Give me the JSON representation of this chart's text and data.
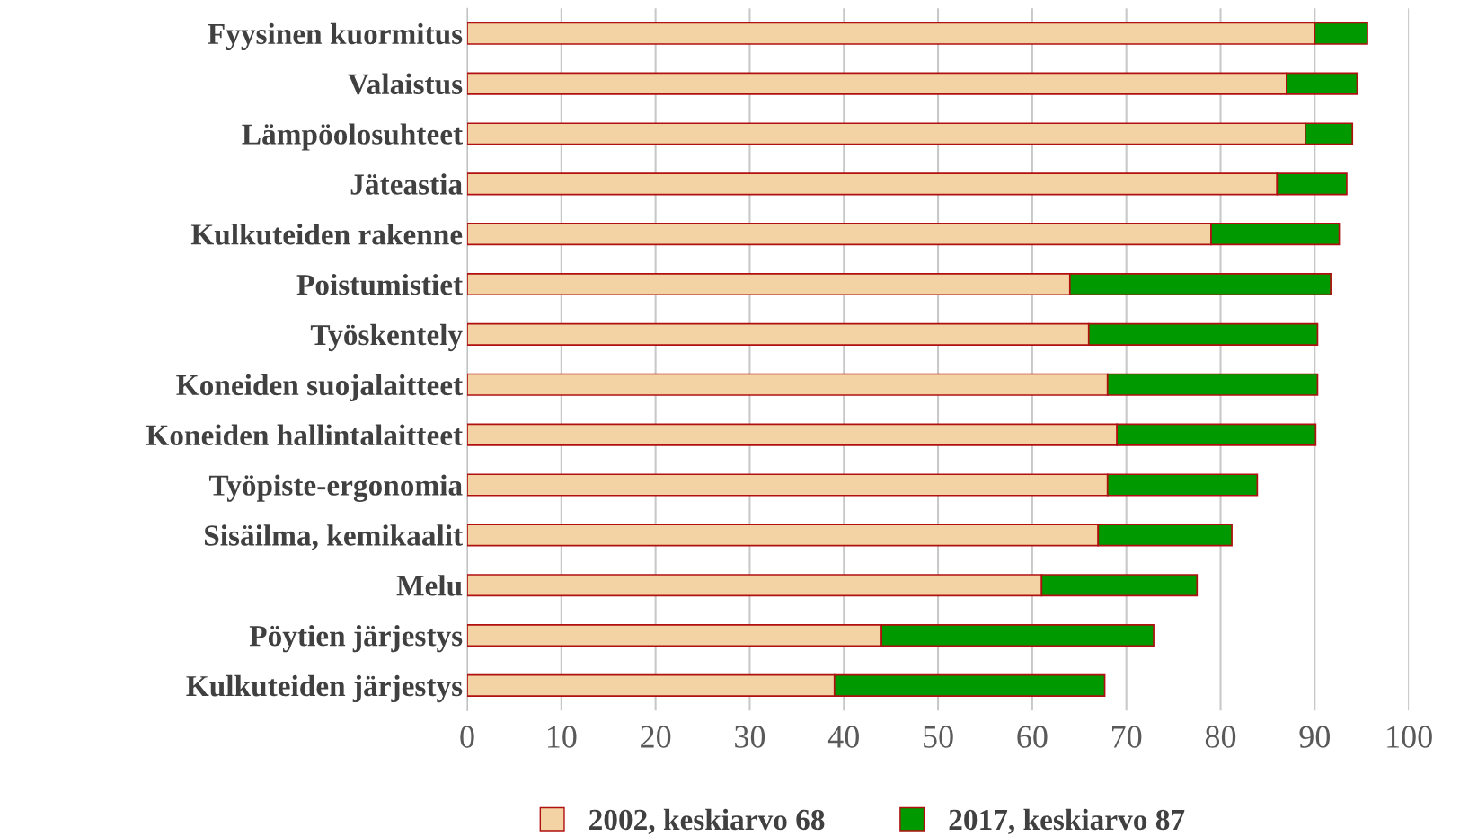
{
  "chart_data": {
    "type": "bar",
    "orientation": "horizontal",
    "stacked": true,
    "categories": [
      "Fyysinen kuormitus",
      "Valaistus",
      "Lämpöolosuhteet",
      "Jäteastia",
      "Kulkuteiden rakenne",
      "Poistumistiet",
      "Työskentely",
      "Koneiden suojalaitteet",
      "Koneiden hallintalaitteet",
      "Työpiste-ergonomia",
      "Sisäilma, kemikaalit",
      "Melu",
      "Pöytien järjestys",
      "Kulkuteiden järjestys"
    ],
    "series": [
      {
        "name": "2002, keskiarvo 68",
        "color": "#f3d3a3",
        "values": [
          90,
          87,
          89,
          86,
          79,
          64,
          66,
          68,
          69,
          68,
          67,
          61,
          44,
          39
        ]
      },
      {
        "name": "2017, keskiarvo 87",
        "color": "#009900",
        "values": [
          5.6,
          7.5,
          5,
          7.4,
          13.6,
          27.7,
          24.3,
          22.3,
          21.1,
          15.9,
          14.2,
          16.5,
          28.9,
          28.7
        ]
      }
    ],
    "xlim": [
      0,
      100
    ],
    "xticks": [
      0,
      10,
      20,
      30,
      40,
      50,
      60,
      70,
      80,
      90,
      100
    ],
    "grid": "x",
    "legend": "bottom"
  }
}
